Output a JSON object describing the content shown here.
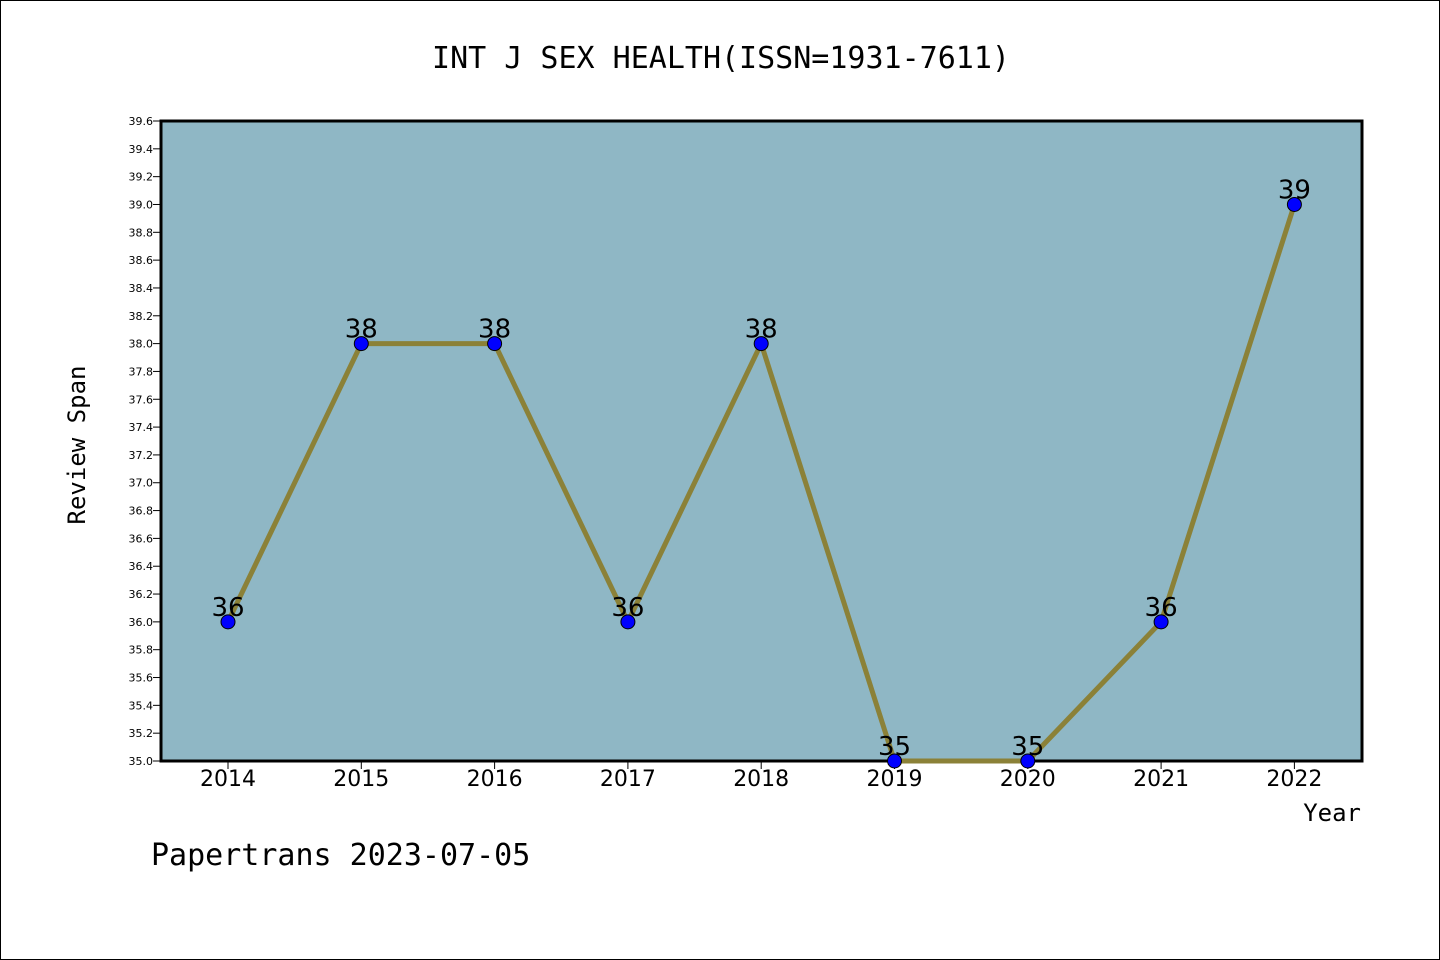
{
  "chart_data": {
    "type": "line",
    "title": "INT J SEX HEALTH(ISSN=1931-7611)",
    "xlabel": "Year",
    "ylabel": "Review Span",
    "categories": [
      "2014",
      "2015",
      "2016",
      "2017",
      "2018",
      "2019",
      "2020",
      "2021",
      "2022"
    ],
    "values": [
      36,
      38,
      38,
      36,
      38,
      35,
      35,
      36,
      39
    ],
    "data_labels": [
      "36",
      "38",
      "38",
      "36",
      "38",
      "35",
      "35",
      "36",
      "39"
    ],
    "ylim": [
      35.0,
      39.6
    ],
    "y_ticks": [
      "35.0",
      "35.2",
      "35.4",
      "35.6",
      "35.8",
      "36.0",
      "36.2",
      "36.4",
      "36.6",
      "36.8",
      "37.0",
      "37.2",
      "37.4",
      "37.6",
      "37.8",
      "38.0",
      "38.2",
      "38.4",
      "38.6",
      "38.8",
      "39.0",
      "39.2",
      "39.4",
      "39.6"
    ],
    "grid": false,
    "colors": {
      "plot_background": "#8fb7c5",
      "line": "#8b8138",
      "marker": "#0000ff"
    }
  },
  "footer": {
    "text": "Papertrans 2023-07-05"
  }
}
